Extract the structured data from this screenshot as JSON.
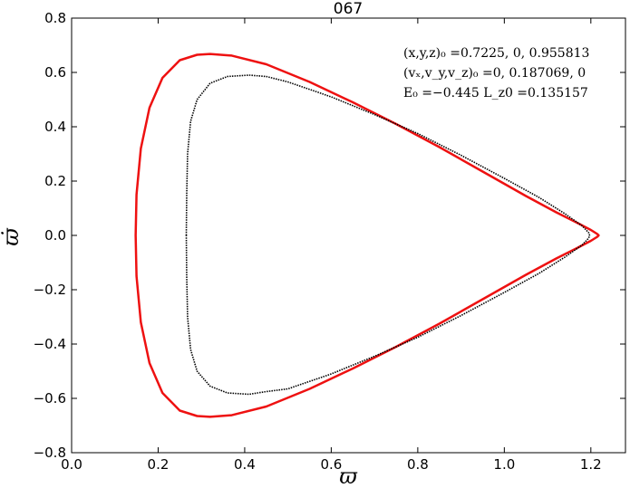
{
  "chart_data": {
    "type": "line",
    "title": "067",
    "xlabel": "ϖ",
    "ylabel": "ϖ̇",
    "xlim": [
      0.0,
      1.28
    ],
    "ylim": [
      -0.8,
      0.8
    ],
    "xticks": [
      "0.0",
      "0.2",
      "0.4",
      "0.6",
      "0.8",
      "1.0",
      "1.2"
    ],
    "yticks": [
      "0.8",
      "0.6",
      "0.4",
      "0.2",
      "0.0",
      "−0.2",
      "−0.4",
      "−0.6",
      "−0.8"
    ],
    "grid": false,
    "annotations": [
      "(x,y,z)₀ =0.7225, 0, 0.955813",
      "(vₓ,v_y,v_z)₀ =0, 0.187069, 0",
      "E₀ =−0.445  L_z0 =0.135157"
    ],
    "series": [
      {
        "color": "#ee1111",
        "style": "line",
        "x": [
          0.148,
          0.15,
          0.16,
          0.18,
          0.21,
          0.25,
          0.29,
          0.32,
          0.37,
          0.45,
          0.55,
          0.65,
          0.75,
          0.85,
          0.95,
          1.05,
          1.12,
          1.17,
          1.2,
          1.215,
          1.218,
          1.215,
          1.2,
          1.17,
          1.12,
          1.05,
          0.95,
          0.85,
          0.75,
          0.65,
          0.55,
          0.45,
          0.37,
          0.32,
          0.29,
          0.25,
          0.21,
          0.18,
          0.16,
          0.15,
          0.148
        ],
        "y": [
          0.0,
          0.15,
          0.32,
          0.47,
          0.58,
          0.645,
          0.665,
          0.668,
          0.662,
          0.63,
          0.565,
          0.49,
          0.41,
          0.325,
          0.235,
          0.145,
          0.085,
          0.045,
          0.02,
          0.005,
          0.0,
          -0.005,
          -0.02,
          -0.045,
          -0.085,
          -0.145,
          -0.235,
          -0.325,
          -0.41,
          -0.49,
          -0.565,
          -0.63,
          -0.662,
          -0.668,
          -0.665,
          -0.645,
          -0.58,
          -0.47,
          -0.32,
          -0.15,
          0.0
        ]
      },
      {
        "color": "#000000",
        "style": "dotted",
        "x": [
          0.265,
          0.266,
          0.268,
          0.275,
          0.29,
          0.32,
          0.36,
          0.41,
          0.45,
          0.5,
          0.6,
          0.7,
          0.8,
          0.9,
          1.0,
          1.08,
          1.14,
          1.18,
          1.195,
          1.197,
          1.195,
          1.18,
          1.14,
          1.08,
          1.0,
          0.9,
          0.8,
          0.7,
          0.6,
          0.5,
          0.45,
          0.41,
          0.36,
          0.32,
          0.29,
          0.275,
          0.268,
          0.266,
          0.265
        ],
        "y": [
          0.0,
          0.15,
          0.3,
          0.42,
          0.5,
          0.56,
          0.585,
          0.59,
          0.585,
          0.565,
          0.51,
          0.445,
          0.375,
          0.295,
          0.21,
          0.14,
          0.08,
          0.035,
          0.01,
          0.0,
          -0.01,
          -0.035,
          -0.08,
          -0.14,
          -0.21,
          -0.295,
          -0.375,
          -0.445,
          -0.51,
          -0.565,
          -0.575,
          -0.585,
          -0.58,
          -0.555,
          -0.5,
          -0.42,
          -0.3,
          -0.15,
          0.0
        ]
      }
    ]
  }
}
